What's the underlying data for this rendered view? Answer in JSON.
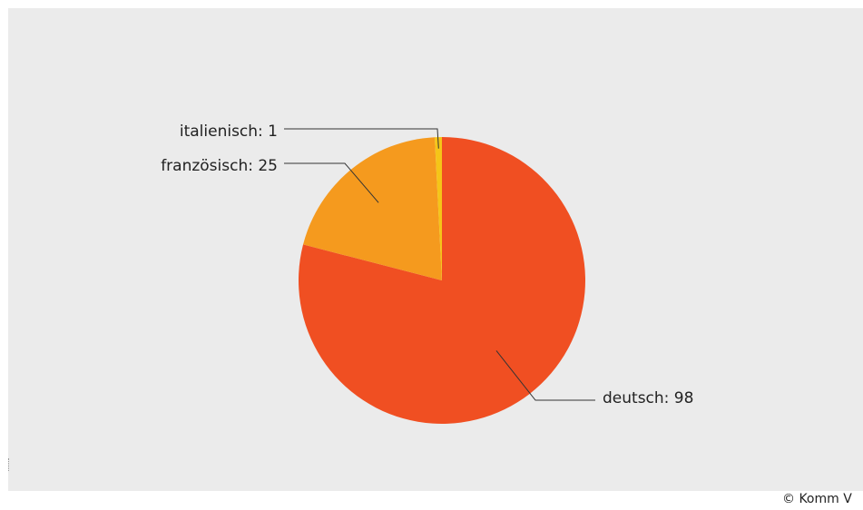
{
  "chart_data": {
    "type": "pie",
    "slices": [
      {
        "label": "deutsch",
        "value": 98,
        "color": "#f04f22"
      },
      {
        "label": "französisch",
        "value": 25,
        "color": "#f59a1e"
      },
      {
        "label": "italienisch",
        "value": 1,
        "color": "#f5c518"
      }
    ],
    "slice_labels": [
      "italienisch: 1",
      "französisch: 25",
      "deutsch: 98"
    ],
    "start_angle_deg": 0,
    "direction": "clockwise"
  },
  "credit_text": "© Komm V",
  "colors": {
    "background": "#ebebeb"
  }
}
